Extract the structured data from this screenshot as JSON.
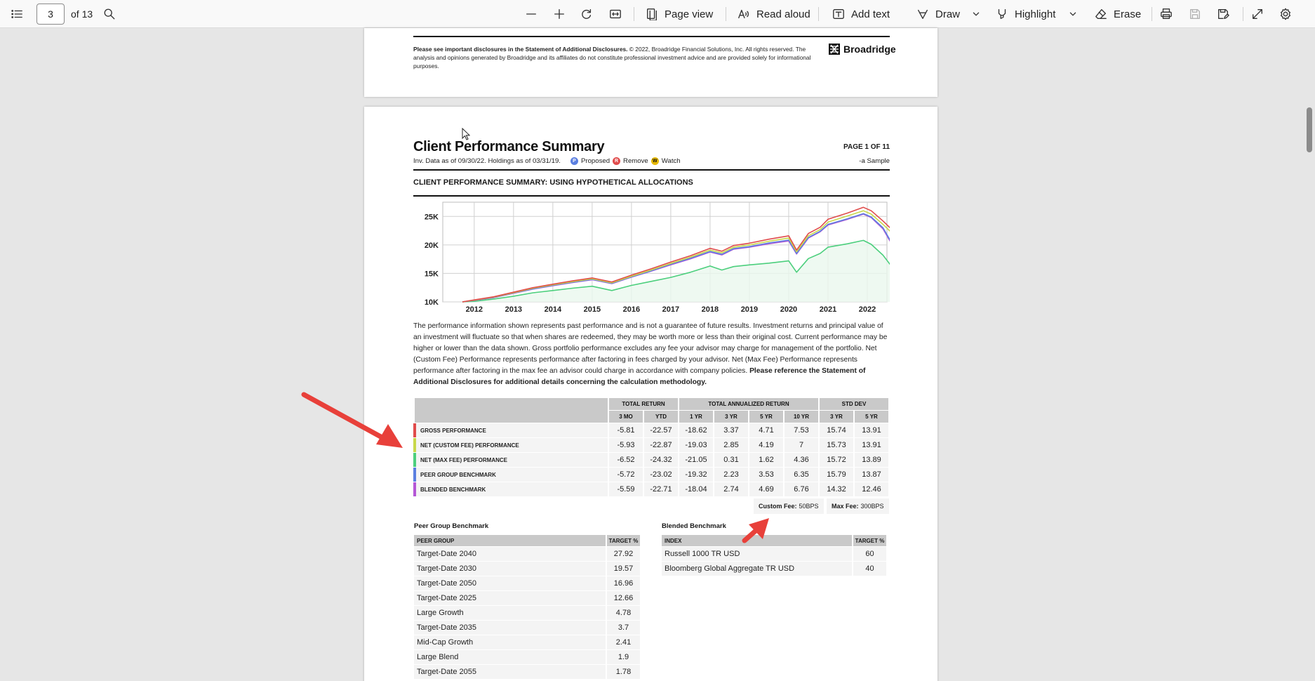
{
  "toolbar": {
    "page_current": "3",
    "page_total": "of 13",
    "page_view": "Page view",
    "read_aloud": "Read aloud",
    "add_text": "Add text",
    "draw": "Draw",
    "highlight": "Highlight",
    "erase": "Erase"
  },
  "prev_page": {
    "disclosure_bold": "Please see important disclosures in the Statement of Additional Disclosures.",
    "disclosure_rest": " © 2022, Broadridge Financial Solutions, Inc. All rights reserved. The analysis and opinions generated by Broadridge and its affiliates do not constitute professional investment advice and are provided solely for informational purposes.",
    "brand": "Broadridge"
  },
  "report": {
    "title": "Client Performance Summary",
    "data_as_of": "Inv. Data as of 09/30/22. Holdings as of 03/31/19.",
    "legend_proposed": "Proposed",
    "legend_remove": "Remove",
    "legend_watch": "Watch",
    "badge_p": "P",
    "badge_r": "R",
    "badge_w": "W",
    "page_label": "PAGE 1 OF 11",
    "sample": "-a Sample",
    "section_title": "CLIENT PERFORMANCE SUMMARY: USING HYPOTHETICAL ALLOCATIONS",
    "paragraph_main": "The performance information shown represents past performance and is not a guarantee of future results. Investment returns and principal value of an investment will fluctuate so that when shares are redeemed, they may be worth more or less than their original cost. Current performance may be higher or lower than the data shown. Gross portfolio performance excludes any fee your advisor may charge for management of the portfolio. Net (Custom Fee) Performance represents performance after factoring in fees charged by your advisor. Net (Max Fee) Performance represents performance after factoring in the max fee an advisor could charge in accordance with company policies. ",
    "paragraph_bold": "Please reference the Statement of Additional Disclosures for additional details concerning the calculation methodology."
  },
  "chart_data": {
    "type": "line",
    "x": [
      2011.7,
      2012.0,
      2012.5,
      2013.0,
      2013.5,
      2014.0,
      2014.5,
      2015.0,
      2015.5,
      2016.0,
      2016.5,
      2017.0,
      2017.5,
      2018.0,
      2018.3,
      2018.6,
      2019.0,
      2019.5,
      2020.0,
      2020.2,
      2020.5,
      2020.8,
      2021.0,
      2021.5,
      2021.9,
      2022.1,
      2022.4,
      2022.7
    ],
    "series": [
      {
        "color": "#e04b4b",
        "values": [
          10000,
          10350,
          10900,
          11700,
          12500,
          13100,
          13700,
          14200,
          13500,
          14700,
          15800,
          17000,
          18100,
          19400,
          18900,
          19900,
          20300,
          21000,
          21600,
          19100,
          22000,
          23100,
          24500,
          25600,
          26600,
          26000,
          24200,
          22200
        ]
      },
      {
        "color": "#c8d84a",
        "values": [
          10000,
          10300,
          10850,
          11600,
          12400,
          13000,
          13550,
          14050,
          13350,
          14500,
          15600,
          16750,
          17850,
          19100,
          18600,
          19600,
          20000,
          20650,
          21200,
          18800,
          21600,
          22700,
          24000,
          25100,
          26000,
          25400,
          23600,
          21600
        ]
      },
      {
        "color": "#4ccf7d",
        "values": [
          10000,
          10100,
          10500,
          11000,
          11600,
          12000,
          12400,
          12750,
          12000,
          12900,
          13600,
          14300,
          15200,
          16300,
          15600,
          16200,
          16500,
          16800,
          17200,
          15200,
          17600,
          18500,
          19600,
          20200,
          20800,
          20100,
          18200,
          15500
        ]
      },
      {
        "color": "#5b7fe0",
        "values": [
          10000,
          10280,
          10800,
          11550,
          12300,
          12900,
          13450,
          13950,
          13250,
          14400,
          15450,
          16600,
          17650,
          18850,
          18350,
          19350,
          19700,
          20350,
          20850,
          18500,
          21300,
          22400,
          23600,
          24600,
          25500,
          24900,
          23000,
          19400
        ]
      },
      {
        "color": "#b457d6",
        "values": [
          10000,
          10250,
          10750,
          11500,
          12250,
          12850,
          13400,
          13900,
          13200,
          14350,
          15400,
          16500,
          17550,
          18750,
          18250,
          19250,
          19600,
          20200,
          20700,
          18400,
          21200,
          22300,
          23500,
          24500,
          25400,
          24800,
          22800,
          19200
        ]
      }
    ],
    "x_ticks": [
      "2012",
      "2013",
      "2014",
      "2015",
      "2016",
      "2017",
      "2018",
      "2019",
      "2020",
      "2021",
      "2022"
    ],
    "y_ticks": [
      "10K",
      "15K",
      "20K",
      "25K"
    ],
    "ylim": [
      10000,
      27500
    ],
    "xlim": [
      2011.2,
      2022.5
    ],
    "grid": true
  },
  "perf_table": {
    "group_headers": [
      "TOTAL RETURN",
      "TOTAL ANNUALIZED RETURN",
      "STD DEV"
    ],
    "columns": [
      "3 MO",
      "YTD",
      "1 YR",
      "3 YR",
      "5 YR",
      "10 YR",
      "3 YR",
      "5 YR"
    ],
    "rows": [
      {
        "label": "GROSS PERFORMANCE",
        "color": "#e04b4b",
        "values": [
          "-5.81",
          "-22.57",
          "-18.62",
          "3.37",
          "4.71",
          "7.53",
          "15.74",
          "13.91"
        ]
      },
      {
        "label": "NET (CUSTOM FEE) PERFORMANCE",
        "color": "#c8d84a",
        "values": [
          "-5.93",
          "-22.87",
          "-19.03",
          "2.85",
          "4.19",
          "7",
          "15.73",
          "13.91"
        ]
      },
      {
        "label": "NET (MAX FEE) PERFORMANCE",
        "color": "#4ccf7d",
        "values": [
          "-6.52",
          "-24.32",
          "-21.05",
          "0.31",
          "1.62",
          "4.36",
          "15.72",
          "13.89"
        ]
      },
      {
        "label": "PEER GROUP BENCHMARK",
        "color": "#5b7fe0",
        "values": [
          "-5.72",
          "-23.02",
          "-19.32",
          "2.23",
          "3.53",
          "6.35",
          "15.79",
          "13.87"
        ]
      },
      {
        "label": "BLENDED BENCHMARK",
        "color": "#b457d6",
        "values": [
          "-5.59",
          "-22.71",
          "-18.04",
          "2.74",
          "4.69",
          "6.76",
          "14.32",
          "12.46"
        ]
      }
    ]
  },
  "fees": {
    "custom_label": "Custom Fee:",
    "custom_value": "50BPS",
    "max_label": "Max Fee:",
    "max_value": "300BPS"
  },
  "peer_group": {
    "title": "Peer Group Benchmark",
    "col_name": "PEER GROUP",
    "col_target": "TARGET %",
    "rows": [
      {
        "name": "Target-Date 2040",
        "target": "27.92"
      },
      {
        "name": "Target-Date 2030",
        "target": "19.57"
      },
      {
        "name": "Target-Date 2050",
        "target": "16.96"
      },
      {
        "name": "Target-Date 2025",
        "target": "12.66"
      },
      {
        "name": "Large Growth",
        "target": "4.78"
      },
      {
        "name": "Target-Date 2035",
        "target": "3.7"
      },
      {
        "name": "Mid-Cap Growth",
        "target": "2.41"
      },
      {
        "name": "Large Blend",
        "target": "1.9"
      },
      {
        "name": "Target-Date 2055",
        "target": "1.78"
      }
    ]
  },
  "blended": {
    "title": "Blended Benchmark",
    "col_name": "INDEX",
    "col_target": "TARGET %",
    "rows": [
      {
        "name": "Russell 1000 TR USD",
        "target": "60"
      },
      {
        "name": "Bloomberg Global Aggregate TR USD",
        "target": "40"
      }
    ]
  },
  "colors": {
    "annotation_arrow": "#e8403a",
    "proposed": "#5b7fe0",
    "remove": "#e04b4b",
    "watch": "#e6b800"
  }
}
